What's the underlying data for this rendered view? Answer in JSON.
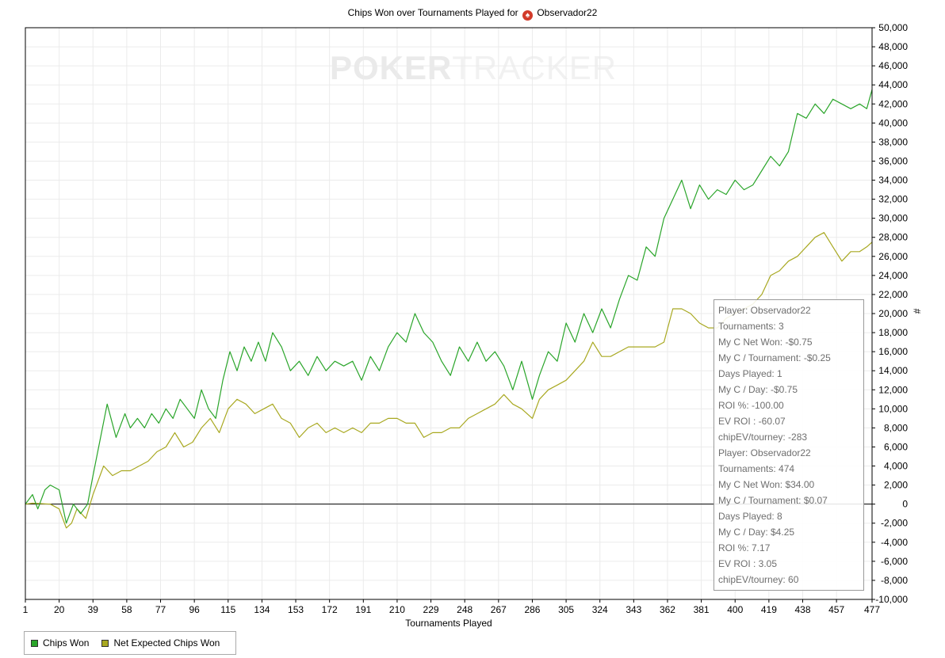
{
  "chart_data": {
    "type": "line",
    "title": "Chips Won over Tournaments Played for",
    "player_name": "Observador22",
    "xlabel": "Tournaments Played",
    "ylabel": "#",
    "xlim": [
      1,
      477
    ],
    "ylim": [
      -10000,
      50000
    ],
    "x_ticks": [
      1,
      20,
      39,
      58,
      77,
      96,
      115,
      134,
      153,
      172,
      191,
      210,
      229,
      248,
      267,
      286,
      305,
      324,
      343,
      362,
      381,
      400,
      419,
      438,
      457,
      477
    ],
    "y_ticks": [
      -10000,
      -8000,
      -6000,
      -4000,
      -2000,
      0,
      2000,
      4000,
      6000,
      8000,
      10000,
      12000,
      14000,
      16000,
      18000,
      20000,
      22000,
      24000,
      26000,
      28000,
      30000,
      32000,
      34000,
      36000,
      38000,
      40000,
      42000,
      44000,
      46000,
      48000,
      50000
    ],
    "y_tick_labels": [
      "-10,000",
      "-8,000",
      "-6,000",
      "-4,000",
      "-2,000",
      "0",
      "2,000",
      "4,000",
      "6,000",
      "8,000",
      "10,000",
      "12,000",
      "14,000",
      "16,000",
      "18,000",
      "20,000",
      "22,000",
      "24,000",
      "26,000",
      "28,000",
      "30,000",
      "32,000",
      "34,000",
      "36,000",
      "38,000",
      "40,000",
      "42,000",
      "44,000",
      "46,000",
      "48,000",
      "50,000"
    ],
    "grid": true,
    "legend_position": "bottom-left",
    "series": [
      {
        "name": "Chips Won",
        "color": "#2aa52a",
        "x": [
          1,
          5,
          8,
          12,
          15,
          20,
          24,
          28,
          32,
          36,
          39,
          47,
          52,
          57,
          60,
          64,
          68,
          72,
          76,
          80,
          84,
          88,
          92,
          96,
          100,
          104,
          108,
          112,
          116,
          120,
          124,
          128,
          132,
          136,
          140,
          145,
          150,
          155,
          160,
          165,
          170,
          175,
          180,
          185,
          190,
          195,
          200,
          205,
          210,
          215,
          220,
          225,
          230,
          235,
          240,
          245,
          250,
          255,
          260,
          265,
          270,
          275,
          280,
          286,
          290,
          295,
          300,
          305,
          310,
          315,
          320,
          325,
          330,
          335,
          340,
          345,
          350,
          355,
          360,
          365,
          370,
          375,
          380,
          385,
          390,
          395,
          400,
          405,
          410,
          415,
          420,
          425,
          430,
          435,
          440,
          445,
          450,
          455,
          460,
          465,
          470,
          474,
          477
        ],
        "values": [
          0,
          1000,
          -500,
          1500,
          2000,
          1500,
          -2000,
          0,
          -1000,
          0,
          3000,
          10500,
          7000,
          9500,
          8000,
          9000,
          8000,
          9500,
          8500,
          10000,
          9000,
          11000,
          10000,
          9000,
          12000,
          10000,
          9000,
          13000,
          16000,
          14000,
          16500,
          15000,
          17000,
          15000,
          18000,
          16500,
          14000,
          15000,
          13500,
          15500,
          14000,
          15000,
          14500,
          15000,
          13000,
          15500,
          14000,
          16500,
          18000,
          17000,
          20000,
          18000,
          17000,
          15000,
          13500,
          16500,
          15000,
          17000,
          15000,
          16000,
          14500,
          12000,
          15000,
          11000,
          13500,
          16000,
          15000,
          19000,
          17000,
          20000,
          18000,
          20500,
          18500,
          21500,
          24000,
          23500,
          27000,
          26000,
          30000,
          32000,
          34000,
          31000,
          33500,
          32000,
          33000,
          32500,
          34000,
          33000,
          33500,
          35000,
          36500,
          35500,
          37000,
          41000,
          40500,
          42000,
          41000,
          42500,
          42000,
          41500,
          42000,
          41500,
          43500
        ]
      },
      {
        "name": "Net Expected Chips Won",
        "color": "#a8a820",
        "x": [
          1,
          5,
          10,
          15,
          20,
          24,
          27,
          30,
          35,
          39,
          45,
          50,
          55,
          60,
          65,
          70,
          75,
          80,
          85,
          90,
          95,
          100,
          105,
          110,
          115,
          120,
          125,
          130,
          135,
          140,
          145,
          150,
          155,
          160,
          165,
          170,
          175,
          180,
          185,
          190,
          195,
          200,
          205,
          210,
          215,
          220,
          225,
          230,
          235,
          240,
          245,
          250,
          255,
          260,
          265,
          270,
          275,
          280,
          286,
          290,
          295,
          300,
          305,
          310,
          315,
          320,
          325,
          330,
          335,
          340,
          345,
          350,
          355,
          360,
          365,
          370,
          375,
          380,
          385,
          390,
          395,
          400,
          405,
          410,
          415,
          420,
          425,
          430,
          435,
          440,
          445,
          450,
          455,
          460,
          465,
          470,
          474,
          477
        ],
        "values": [
          0,
          100,
          50,
          0,
          -500,
          -2500,
          -2000,
          -500,
          -1500,
          1000,
          4000,
          3000,
          3500,
          3500,
          4000,
          4500,
          5500,
          6000,
          7500,
          6000,
          6500,
          8000,
          9000,
          7500,
          10000,
          11000,
          10500,
          9500,
          10000,
          10500,
          9000,
          8500,
          7000,
          8000,
          8500,
          7500,
          8000,
          7500,
          8000,
          7500,
          8500,
          8500,
          9000,
          9000,
          8500,
          8500,
          7000,
          7500,
          7500,
          8000,
          8000,
          9000,
          9500,
          10000,
          10500,
          11500,
          10500,
          10000,
          9000,
          11000,
          12000,
          12500,
          13000,
          14000,
          15000,
          17000,
          15500,
          15500,
          16000,
          16500,
          16500,
          16500,
          16500,
          17000,
          20500,
          20500,
          20000,
          19000,
          18500,
          18500,
          19500,
          20000,
          20500,
          21000,
          22000,
          24000,
          24500,
          25500,
          26000,
          27000,
          28000,
          28500,
          27000,
          25500,
          26500,
          26500,
          27000,
          27500
        ]
      }
    ]
  },
  "watermark": {
    "bold": "POKER",
    "light": "TRACKER"
  },
  "tooltip_lines": [
    "Player: Observador22",
    "Tournaments: 3",
    "My C Net Won: -$0.75",
    "My C / Tournament: -$0.25",
    "Days Played: 1",
    "My C / Day: -$0.75",
    "ROI %: -100.00",
    "EV ROI : -60.07",
    "chipEV/tourney: -283",
    "Player: Observador22",
    "Tournaments: 474",
    "My C Net Won: $34.00",
    "My C / Tournament: $0.07",
    "Days Played: 8",
    "My C / Day: $4.25",
    "ROI %: 7.17",
    "EV ROI : 3.05",
    "chipEV/tourney: 60"
  ]
}
